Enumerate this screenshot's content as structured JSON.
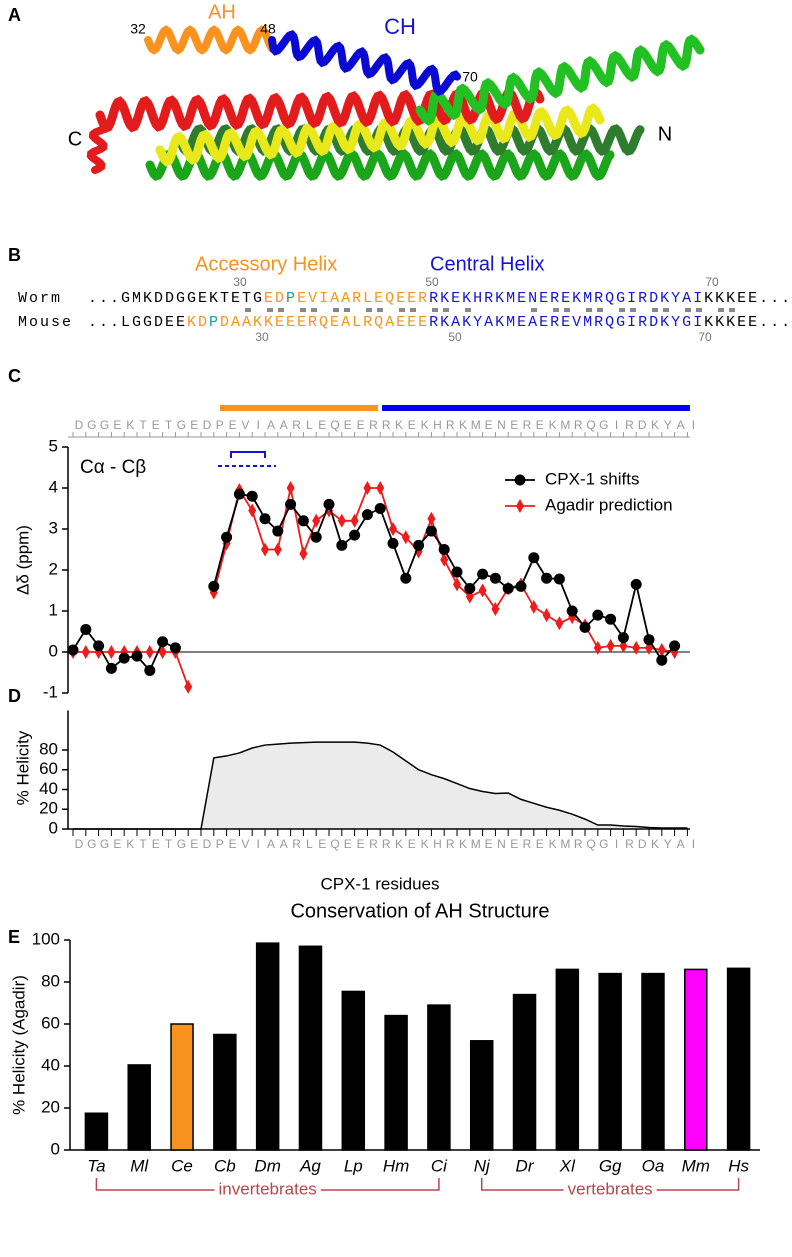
{
  "panel_labels": [
    "A",
    "B",
    "C",
    "D",
    "E"
  ],
  "structure": {
    "labels": [
      {
        "text": "32",
        "color": "#000000"
      },
      {
        "text": "AH",
        "color": "#f7931e"
      },
      {
        "text": "48",
        "color": "#000000"
      },
      {
        "text": "CH",
        "color": "#1414d2"
      },
      {
        "text": "70",
        "color": "#000000"
      },
      {
        "text": "C",
        "color": "#000000"
      },
      {
        "text": "N",
        "color": "#000000"
      }
    ]
  },
  "alignment": {
    "helix_labels": [
      {
        "text": "Accessory Helix",
        "color": "#f7931e"
      },
      {
        "text": "Central Helix",
        "color": "#1414d2"
      }
    ],
    "rows": [
      {
        "name": "Worm",
        "numbers": [
          30,
          50,
          70
        ],
        "segments": [
          {
            "text": "...GMKDDGGEKTETG",
            "color": "#000000"
          },
          {
            "text": "ED",
            "color": "#f7931e"
          },
          {
            "text": "P",
            "color": "#1a9a9a"
          },
          {
            "text": "EVIAARLEQEER",
            "color": "#f7931e"
          },
          {
            "text": "RKEKHRKMENEREKMRQGIRDKYAI",
            "color": "#1414d2"
          },
          {
            "text": "KKKEE...",
            "color": "#000000"
          }
        ]
      },
      {
        "name": "Mouse",
        "numbers": [
          30,
          50,
          70
        ],
        "segments": [
          {
            "text": "...LGGDEE",
            "color": "#000000"
          },
          {
            "text": "KD",
            "color": "#f7931e"
          },
          {
            "text": "P",
            "color": "#1a9a9a"
          },
          {
            "text": "DAAKKEEERQEALRQAEEE",
            "color": "#f7931e"
          },
          {
            "text": "RKAKYAKMEAEREVMRQGIRDKYGI",
            "color": "#1414d2"
          },
          {
            "text": "KKKEE...",
            "color": "#000000"
          }
        ]
      }
    ]
  },
  "chart_data": [
    {
      "type": "line",
      "annotation": "Cα - Cβ",
      "y_label": "Δδ (ppm)",
      "categories": [
        "D",
        "G",
        "G",
        "E",
        "K",
        "T",
        "E",
        "T",
        "G",
        "E",
        "D",
        "P",
        "E",
        "V",
        "I",
        "A",
        "A",
        "R",
        "L",
        "E",
        "Q",
        "E",
        "E",
        "R",
        "R",
        "K",
        "E",
        "K",
        "H",
        "R",
        "K",
        "M",
        "E",
        "N",
        "E",
        "R",
        "E",
        "K",
        "M",
        "R",
        "Q",
        "G",
        "I",
        "R",
        "D",
        "K",
        "Y",
        "A",
        "I"
      ],
      "ylim": [
        -1,
        5
      ],
      "yticks": [
        -1,
        0,
        1,
        2,
        3,
        4,
        5
      ],
      "zero_line": true,
      "legend": "upper right",
      "series": [
        {
          "name": "CPX-1 shifts",
          "color": "#000000",
          "marker": "circle",
          "values": [
            0.05,
            0.55,
            0.15,
            -0.4,
            -0.15,
            -0.1,
            -0.45,
            0.25,
            0.1,
            null,
            null,
            1.6,
            2.8,
            3.85,
            3.8,
            3.25,
            2.95,
            3.6,
            3.2,
            2.8,
            3.6,
            2.6,
            2.85,
            3.35,
            3.5,
            2.65,
            1.8,
            2.6,
            2.95,
            2.5,
            1.95,
            1.55,
            1.9,
            1.8,
            1.55,
            1.6,
            2.3,
            1.8,
            1.78,
            1.0,
            0.6,
            0.9,
            0.8,
            0.35,
            1.65,
            0.3,
            -0.2,
            0.15,
            null
          ]
        },
        {
          "name": "Agadir prediction",
          "color": "#ee1c1c",
          "marker": "diamond",
          "values": [
            0,
            0,
            0,
            0,
            0,
            0,
            0,
            0,
            0,
            -0.85,
            null,
            1.45,
            2.65,
            3.95,
            3.45,
            2.5,
            2.5,
            4.0,
            2.4,
            3.2,
            3.45,
            3.2,
            3.2,
            4.0,
            4.0,
            3.0,
            2.8,
            2.45,
            3.25,
            2.25,
            1.65,
            1.35,
            1.5,
            1.05,
            1.55,
            1.65,
            1.1,
            0.9,
            0.7,
            0.85,
            0.65,
            0.1,
            0.15,
            0.15,
            0.1,
            0.1,
            0.05,
            0.0,
            null
          ]
        }
      ]
    },
    {
      "type": "area",
      "y_label": "% Helicity",
      "x_label": "CPX-1 residues",
      "categories": [
        "D",
        "G",
        "G",
        "E",
        "K",
        "T",
        "E",
        "T",
        "G",
        "E",
        "D",
        "P",
        "E",
        "V",
        "I",
        "A",
        "A",
        "R",
        "L",
        "E",
        "Q",
        "E",
        "E",
        "R",
        "R",
        "K",
        "E",
        "K",
        "H",
        "R",
        "K",
        "M",
        "E",
        "N",
        "E",
        "R",
        "E",
        "K",
        "M",
        "R",
        "Q",
        "G",
        "I",
        "R",
        "D",
        "K",
        "Y",
        "A",
        "I"
      ],
      "values": [
        0,
        0,
        0,
        0,
        0,
        0,
        0,
        0,
        0,
        0,
        0,
        72,
        74,
        77,
        82,
        85,
        86,
        87,
        87.5,
        88,
        88,
        88,
        88,
        87,
        85,
        78,
        69,
        60,
        55,
        51,
        46,
        41,
        38,
        36,
        36.5,
        30,
        26,
        22,
        19,
        15,
        10,
        4,
        4,
        3,
        2.5,
        1.5,
        1,
        1,
        1
      ],
      "color": "#ebebeb",
      "ylim": [
        0,
        120
      ],
      "yticks": [
        0,
        20,
        40,
        60,
        80
      ]
    },
    {
      "type": "bar",
      "title": "Conservation of AH Structure",
      "y_label": "% Helicity (Agadir)",
      "categories": [
        "Ta",
        "Ml",
        "Ce",
        "Cb",
        "Dm",
        "Ag",
        "Lp",
        "Hm",
        "Ci",
        "Nj",
        "Dr",
        "Xl",
        "Gg",
        "Oa",
        "Mm",
        "Hs"
      ],
      "values": [
        17.5,
        40.5,
        60,
        55,
        98.5,
        97,
        75.5,
        64,
        69,
        52,
        74,
        86,
        84,
        84,
        86,
        86.5
      ],
      "colors": [
        "#000000",
        "#000000",
        "#f7931e",
        "#000000",
        "#000000",
        "#000000",
        "#000000",
        "#000000",
        "#000000",
        "#000000",
        "#000000",
        "#000000",
        "#000000",
        "#000000",
        "#ff00ff",
        "#000000"
      ],
      "ylim": [
        0,
        100
      ],
      "yticks": [
        0,
        20,
        40,
        60,
        80,
        100
      ],
      "group_color": "#b5484d",
      "groups": [
        {
          "label": "invertebrates",
          "start": "Ta",
          "end": "Ci"
        },
        {
          "label": "vertebrates",
          "start": "Nj",
          "end": "Hs"
        }
      ]
    }
  ]
}
